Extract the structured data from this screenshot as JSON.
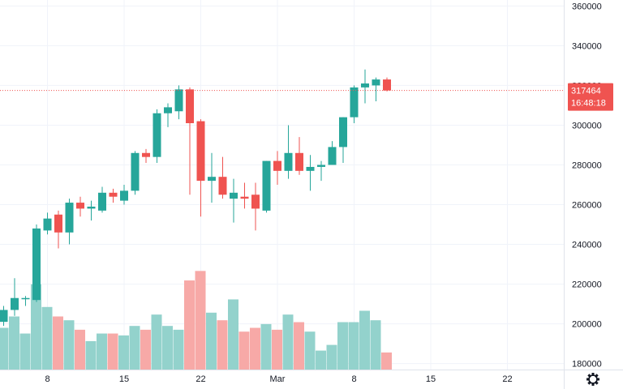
{
  "colors": {
    "up": "#26a69a",
    "down": "#ef5350",
    "up_volume": "#93d2cc",
    "down_volume": "#f7a9a7",
    "grid": "#f0f3fa",
    "axis_text": "#131722",
    "price_line": "#ef5350"
  },
  "icons": {
    "settings": "gear-icon"
  },
  "chart_data": {
    "type": "candlestick",
    "grid": true,
    "y_axis": {
      "ticks": [
        "360000",
        "340000",
        "320000",
        "300000",
        "280000",
        "260000",
        "240000",
        "220000",
        "200000",
        "180000"
      ],
      "ylim": [
        177000,
        363000
      ]
    },
    "x_axis": {
      "ticks": [
        {
          "label": "8",
          "index": 4
        },
        {
          "label": "15",
          "index": 11
        },
        {
          "label": "22",
          "index": 18
        },
        {
          "label": "Mar",
          "index": 25
        },
        {
          "label": "8",
          "index": 32
        },
        {
          "label": "15",
          "index": 39
        },
        {
          "label": "22",
          "index": 46
        }
      ]
    },
    "current_price": {
      "value": 317464,
      "label": "317464",
      "countdown": "16:48:18"
    },
    "volume_range": [
      175000,
      228000
    ],
    "candles": [
      {
        "o": 201000,
        "h": 209000,
        "l": 199000,
        "c": 207000,
        "v": 197000
      },
      {
        "o": 207000,
        "h": 223000,
        "l": 204000,
        "c": 213000,
        "v": 203000
      },
      {
        "o": 213000,
        "h": 214000,
        "l": 209000,
        "c": 213000,
        "v": 194000
      },
      {
        "o": 212000,
        "h": 250000,
        "l": 211000,
        "c": 248000,
        "v": 220000
      },
      {
        "o": 247000,
        "h": 256000,
        "l": 245000,
        "c": 253000,
        "v": 208000
      },
      {
        "o": 255000,
        "h": 257000,
        "l": 238000,
        "c": 246000,
        "v": 203000
      },
      {
        "o": 246000,
        "h": 263000,
        "l": 240000,
        "c": 261000,
        "v": 201000
      },
      {
        "o": 261000,
        "h": 264000,
        "l": 254000,
        "c": 258000,
        "v": 196000
      },
      {
        "o": 258000,
        "h": 262000,
        "l": 252000,
        "c": 259000,
        "v": 190000
      },
      {
        "o": 257000,
        "h": 269000,
        "l": 256000,
        "c": 266000,
        "v": 194000
      },
      {
        "o": 266000,
        "h": 268000,
        "l": 261000,
        "c": 264000,
        "v": 194000
      },
      {
        "o": 262000,
        "h": 270000,
        "l": 260000,
        "c": 267000,
        "v": 193000
      },
      {
        "o": 267000,
        "h": 287000,
        "l": 265000,
        "c": 286000,
        "v": 198000
      },
      {
        "o": 286000,
        "h": 288000,
        "l": 281000,
        "c": 284000,
        "v": 196000
      },
      {
        "o": 284000,
        "h": 308000,
        "l": 281000,
        "c": 306000,
        "v": 204000
      },
      {
        "o": 306000,
        "h": 311000,
        "l": 299000,
        "c": 309000,
        "v": 198000
      },
      {
        "o": 307000,
        "h": 320000,
        "l": 303000,
        "c": 318000,
        "v": 196000
      },
      {
        "o": 318000,
        "h": 319000,
        "l": 265000,
        "c": 301000,
        "v": 222000
      },
      {
        "o": 302000,
        "h": 303000,
        "l": 254000,
        "c": 272000,
        "v": 227000
      },
      {
        "o": 272000,
        "h": 286000,
        "l": 261000,
        "c": 274000,
        "v": 205000
      },
      {
        "o": 274000,
        "h": 284000,
        "l": 263000,
        "c": 265000,
        "v": 201000
      },
      {
        "o": 263000,
        "h": 273000,
        "l": 251000,
        "c": 266000,
        "v": 212000
      },
      {
        "o": 264000,
        "h": 271000,
        "l": 258000,
        "c": 263000,
        "v": 195000
      },
      {
        "o": 265000,
        "h": 271000,
        "l": 247000,
        "c": 258000,
        "v": 197000
      },
      {
        "o": 257000,
        "h": 282000,
        "l": 256000,
        "c": 282000,
        "v": 199000
      },
      {
        "o": 282000,
        "h": 287000,
        "l": 270000,
        "c": 277000,
        "v": 196000
      },
      {
        "o": 277000,
        "h": 300000,
        "l": 273000,
        "c": 286000,
        "v": 204000
      },
      {
        "o": 286000,
        "h": 294000,
        "l": 275000,
        "c": 277000,
        "v": 200000
      },
      {
        "o": 277000,
        "h": 285000,
        "l": 267000,
        "c": 279000,
        "v": 195000
      },
      {
        "o": 279000,
        "h": 282000,
        "l": 272000,
        "c": 280000,
        "v": 185000
      },
      {
        "o": 280000,
        "h": 292000,
        "l": 280000,
        "c": 289000,
        "v": 188000
      },
      {
        "o": 289000,
        "h": 304000,
        "l": 281000,
        "c": 304000,
        "v": 200000
      },
      {
        "o": 304000,
        "h": 320000,
        "l": 301000,
        "c": 319000,
        "v": 200000
      },
      {
        "o": 319000,
        "h": 328000,
        "l": 311000,
        "c": 321000,
        "v": 206000
      },
      {
        "o": 320000,
        "h": 324000,
        "l": 312000,
        "c": 323000,
        "v": 201000
      },
      {
        "o": 323000,
        "h": 324000,
        "l": 317000,
        "c": 317464,
        "v": 184000
      }
    ]
  }
}
